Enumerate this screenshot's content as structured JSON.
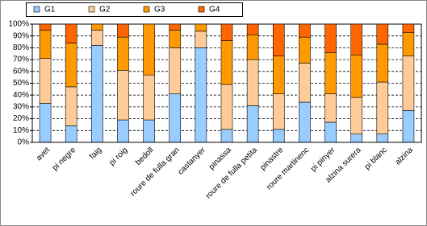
{
  "chart_data": {
    "type": "stacked_bar",
    "categories": [
      "avet",
      "pi negre",
      "faig",
      "pi roig",
      "bedoll",
      "roure de fulla gran",
      "castanyer",
      "pinassa",
      "roure de fulla petita",
      "pinastre",
      "roure martinenc",
      "pi pinyer",
      "alzina surera",
      "pi blanc",
      "alzina"
    ],
    "series": [
      {
        "name": "G1",
        "color": "#99ccff",
        "values": [
          33,
          14,
          82,
          19,
          19,
          41,
          80,
          11,
          31,
          11,
          34,
          17,
          7,
          7,
          27
        ]
      },
      {
        "name": "G2",
        "color": "#ffcc99",
        "values": [
          38,
          33,
          13,
          42,
          38,
          39,
          14,
          38,
          39,
          30,
          33,
          24,
          31,
          44,
          46
        ]
      },
      {
        "name": "G3",
        "color": "#ff9900",
        "values": [
          24,
          37,
          5,
          28,
          43,
          15,
          6,
          37,
          21,
          32,
          22,
          35,
          36,
          32,
          20
        ]
      },
      {
        "name": "G4",
        "color": "#ff6600",
        "values": [
          5,
          16,
          0,
          11,
          0,
          5,
          0,
          14,
          9,
          27,
          11,
          24,
          26,
          17,
          7
        ]
      }
    ],
    "ylim": [
      0,
      100
    ],
    "yticks": [
      {
        "value": 0,
        "label": "0%"
      },
      {
        "value": 10,
        "label": "10%"
      },
      {
        "value": 20,
        "label": "20%"
      },
      {
        "value": 30,
        "label": "30%"
      },
      {
        "value": 40,
        "label": "40%"
      },
      {
        "value": 50,
        "label": "50%"
      },
      {
        "value": 60,
        "label": "60%"
      },
      {
        "value": 70,
        "label": "70%"
      },
      {
        "value": 80,
        "label": "80%"
      },
      {
        "value": 90,
        "label": "90%"
      },
      {
        "value": 100,
        "label": "100%"
      }
    ],
    "grid": true,
    "legend": "top"
  }
}
